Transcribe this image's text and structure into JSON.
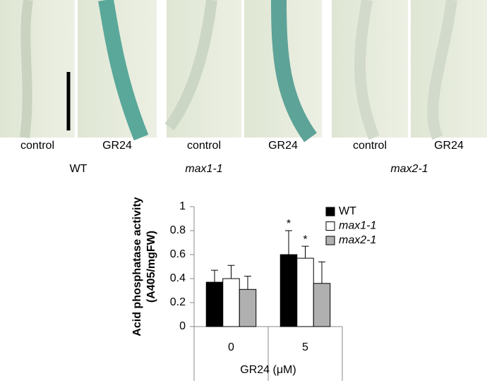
{
  "panels": {
    "groups": [
      {
        "label": "WT",
        "images": [
          "control",
          "GR24"
        ]
      },
      {
        "label": "max1-1",
        "images": [
          "control",
          "GR24"
        ]
      },
      {
        "label": "max2-1",
        "images": [
          "control",
          "GR24"
        ]
      }
    ]
  },
  "chart_data": {
    "type": "bar",
    "ylabel": [
      "Acid phosphatase activity",
      "(A405/mgFW)"
    ],
    "xlabel": "GR24 (μM)",
    "categories": [
      "0",
      "5"
    ],
    "series": [
      {
        "name": "WT",
        "color": "#000000",
        "values": [
          0.37,
          0.6
        ],
        "errors": [
          0.1,
          0.2
        ]
      },
      {
        "name": "max1-1",
        "color": "#ffffff",
        "values": [
          0.4,
          0.57
        ],
        "errors": [
          0.11,
          0.1
        ]
      },
      {
        "name": "max2-1",
        "color": "#b0b0b0",
        "values": [
          0.31,
          0.36
        ],
        "errors": [
          0.11,
          0.18
        ]
      }
    ],
    "annotations": [
      {
        "text": "*",
        "series": 0,
        "category": 1
      },
      {
        "text": "*",
        "series": 1,
        "category": 1
      }
    ],
    "ylim": [
      0,
      1
    ],
    "yticks": [
      0,
      0.2,
      0.4,
      0.6,
      0.8,
      1
    ],
    "legend": "upper right"
  }
}
